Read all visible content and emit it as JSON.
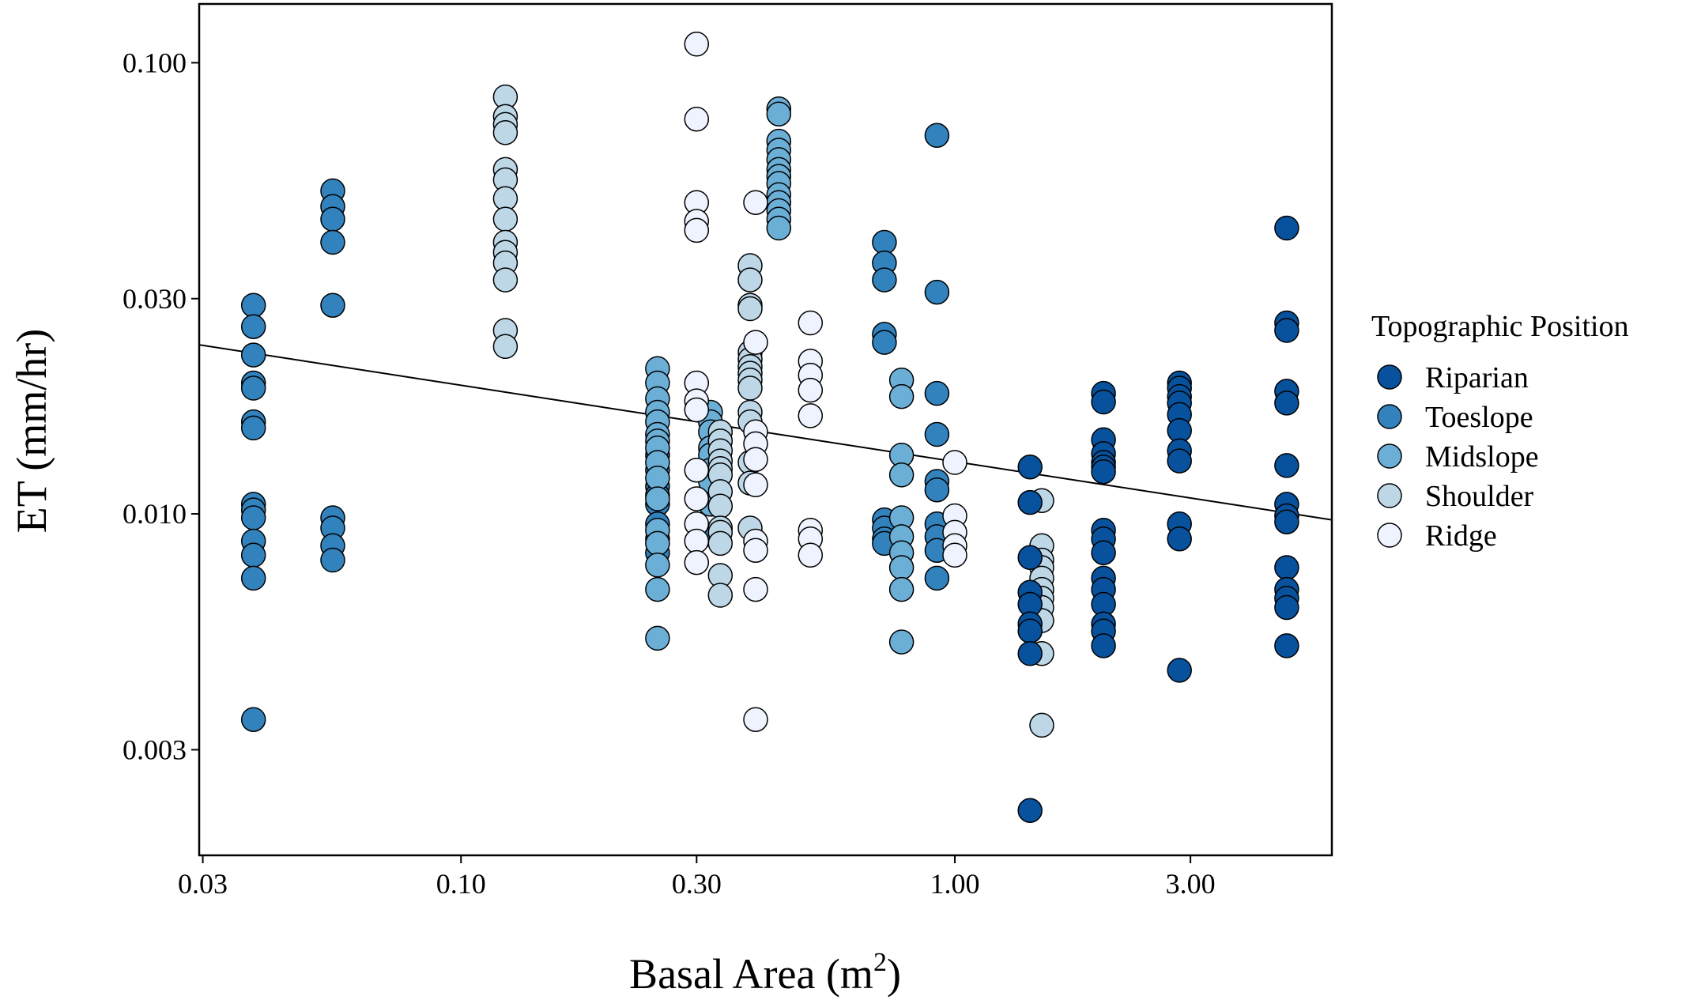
{
  "chart_data": {
    "type": "scatter",
    "title": "",
    "xlabel": "Basal Area (m",
    "xlabel_superscript": "2",
    "xlabel_close": ")",
    "ylabel": "ET (mm/hr)",
    "x_scale": "log10",
    "y_scale": "log10",
    "xlim": [
      0.0295,
      5.8
    ],
    "ylim": [
      0.00175,
      0.135
    ],
    "x_ticks": [
      {
        "value": 0.03,
        "label": "0.03"
      },
      {
        "value": 0.1,
        "label": "0.10"
      },
      {
        "value": 0.3,
        "label": "0.30"
      },
      {
        "value": 1.0,
        "label": "1.00"
      },
      {
        "value": 3.0,
        "label": "3.00"
      }
    ],
    "y_ticks": [
      {
        "value": 0.003,
        "label": "0.003"
      },
      {
        "value": 0.01,
        "label": "0.010"
      },
      {
        "value": 0.03,
        "label": "0.030"
      },
      {
        "value": 0.1,
        "label": "0.100"
      }
    ],
    "grid": false,
    "legend": {
      "title": "Topographic Position",
      "placement": "right",
      "entries": [
        "Riparian",
        "Toeslope",
        "Midslope",
        "Shoulder",
        "Ridge"
      ]
    },
    "colors": {
      "Riparian": "#08519c",
      "Toeslope": "#3182bd",
      "Midslope": "#6baed6",
      "Shoulder": "#bdd7e7",
      "Ridge": "#eff3ff"
    },
    "trend_line": {
      "x": [
        0.0295,
        5.8
      ],
      "y": [
        0.0237,
        0.0097
      ]
    },
    "series": [
      {
        "name": "Toeslope",
        "points": [
          [
            0.038,
            0.029
          ],
          [
            0.038,
            0.026
          ],
          [
            0.038,
            0.0225
          ],
          [
            0.038,
            0.0195
          ],
          [
            0.038,
            0.019
          ],
          [
            0.038,
            0.016
          ],
          [
            0.038,
            0.0155
          ],
          [
            0.038,
            0.0105
          ],
          [
            0.038,
            0.0102
          ],
          [
            0.038,
            0.0098
          ],
          [
            0.038,
            0.0087
          ],
          [
            0.038,
            0.0081
          ],
          [
            0.038,
            0.0072
          ],
          [
            0.038,
            0.0035
          ],
          [
            0.055,
            0.052
          ],
          [
            0.055,
            0.048
          ],
          [
            0.055,
            0.045
          ],
          [
            0.055,
            0.04
          ],
          [
            0.055,
            0.029
          ],
          [
            0.055,
            0.0098
          ],
          [
            0.055,
            0.0093
          ],
          [
            0.055,
            0.0085
          ],
          [
            0.055,
            0.0079
          ],
          [
            0.25,
            0.0135
          ],
          [
            0.25,
            0.0125
          ],
          [
            0.25,
            0.0115
          ],
          [
            0.25,
            0.011
          ],
          [
            0.25,
            0.0105
          ],
          [
            0.25,
            0.0095
          ],
          [
            0.25,
            0.0088
          ],
          [
            0.25,
            0.0082
          ],
          [
            0.32,
            0.009
          ],
          [
            0.72,
            0.04
          ],
          [
            0.72,
            0.036
          ],
          [
            0.72,
            0.033
          ],
          [
            0.72,
            0.025
          ],
          [
            0.72,
            0.024
          ],
          [
            0.72,
            0.0097
          ],
          [
            0.72,
            0.0093
          ],
          [
            0.72,
            0.0088
          ],
          [
            0.72,
            0.0086
          ],
          [
            0.92,
            0.069
          ],
          [
            0.92,
            0.031
          ],
          [
            0.92,
            0.0185
          ],
          [
            0.92,
            0.015
          ],
          [
            0.92,
            0.0118
          ],
          [
            0.92,
            0.0113
          ],
          [
            0.92,
            0.0095
          ],
          [
            0.92,
            0.0089
          ],
          [
            0.92,
            0.0083
          ],
          [
            0.92,
            0.0072
          ]
        ]
      },
      {
        "name": "Midslope",
        "points": [
          [
            0.25,
            0.021
          ],
          [
            0.25,
            0.0195
          ],
          [
            0.25,
            0.018
          ],
          [
            0.25,
            0.0168
          ],
          [
            0.25,
            0.016
          ],
          [
            0.25,
            0.015
          ],
          [
            0.25,
            0.0145
          ],
          [
            0.25,
            0.014
          ],
          [
            0.25,
            0.013
          ],
          [
            0.25,
            0.012
          ],
          [
            0.25,
            0.0108
          ],
          [
            0.25,
            0.0092
          ],
          [
            0.25,
            0.0086
          ],
          [
            0.25,
            0.0077
          ],
          [
            0.25,
            0.0068
          ],
          [
            0.25,
            0.0053
          ],
          [
            0.32,
            0.0168
          ],
          [
            0.32,
            0.016
          ],
          [
            0.32,
            0.0152
          ],
          [
            0.32,
            0.014
          ],
          [
            0.32,
            0.0135
          ],
          [
            0.32,
            0.0125
          ],
          [
            0.32,
            0.0118
          ],
          [
            0.32,
            0.0105
          ],
          [
            0.44,
            0.079
          ],
          [
            0.44,
            0.077
          ],
          [
            0.44,
            0.067
          ],
          [
            0.44,
            0.064
          ],
          [
            0.44,
            0.061
          ],
          [
            0.44,
            0.058
          ],
          [
            0.44,
            0.056
          ],
          [
            0.44,
            0.054
          ],
          [
            0.44,
            0.051
          ],
          [
            0.44,
            0.049
          ],
          [
            0.44,
            0.047
          ],
          [
            0.44,
            0.045
          ],
          [
            0.44,
            0.043
          ],
          [
            0.78,
            0.0198
          ],
          [
            0.78,
            0.0182
          ],
          [
            0.78,
            0.0135
          ],
          [
            0.78,
            0.0122
          ],
          [
            0.78,
            0.0098
          ],
          [
            0.78,
            0.0089
          ],
          [
            0.78,
            0.0082
          ],
          [
            0.78,
            0.0076
          ],
          [
            0.78,
            0.0068
          ],
          [
            0.78,
            0.0052
          ]
        ]
      },
      {
        "name": "Shoulder",
        "points": [
          [
            0.123,
            0.084
          ],
          [
            0.123,
            0.076
          ],
          [
            0.123,
            0.073
          ],
          [
            0.123,
            0.07
          ],
          [
            0.123,
            0.058
          ],
          [
            0.123,
            0.055
          ],
          [
            0.123,
            0.05
          ],
          [
            0.123,
            0.045
          ],
          [
            0.123,
            0.04
          ],
          [
            0.123,
            0.038
          ],
          [
            0.123,
            0.036
          ],
          [
            0.123,
            0.033
          ],
          [
            0.123,
            0.0255
          ],
          [
            0.123,
            0.0235
          ],
          [
            0.335,
            0.0152
          ],
          [
            0.335,
            0.0145
          ],
          [
            0.335,
            0.0138
          ],
          [
            0.335,
            0.0131
          ],
          [
            0.335,
            0.0126
          ],
          [
            0.335,
            0.0122
          ],
          [
            0.335,
            0.0112
          ],
          [
            0.335,
            0.0104
          ],
          [
            0.335,
            0.0093
          ],
          [
            0.335,
            0.0091
          ],
          [
            0.335,
            0.0086
          ],
          [
            0.335,
            0.0073
          ],
          [
            0.335,
            0.0066
          ],
          [
            0.385,
            0.0355
          ],
          [
            0.385,
            0.033
          ],
          [
            0.385,
            0.029
          ],
          [
            0.385,
            0.0285
          ],
          [
            0.385,
            0.0228
          ],
          [
            0.385,
            0.022
          ],
          [
            0.385,
            0.0212
          ],
          [
            0.385,
            0.0205
          ],
          [
            0.385,
            0.0198
          ],
          [
            0.385,
            0.019
          ],
          [
            0.385,
            0.0168
          ],
          [
            0.385,
            0.016
          ],
          [
            0.385,
            0.013
          ],
          [
            0.385,
            0.0117
          ],
          [
            0.385,
            0.0093
          ],
          [
            1.5,
            0.0107
          ],
          [
            1.5,
            0.0085
          ],
          [
            1.5,
            0.0079
          ],
          [
            1.5,
            0.0076
          ],
          [
            1.5,
            0.0072
          ],
          [
            1.5,
            0.0068
          ],
          [
            1.5,
            0.0065
          ],
          [
            1.5,
            0.0062
          ],
          [
            1.5,
            0.0058
          ],
          [
            1.5,
            0.0049
          ],
          [
            1.5,
            0.0034
          ]
        ]
      },
      {
        "name": "Ridge",
        "points": [
          [
            0.3,
            0.11
          ],
          [
            0.3,
            0.075
          ],
          [
            0.3,
            0.049
          ],
          [
            0.3,
            0.0445
          ],
          [
            0.3,
            0.0425
          ],
          [
            0.3,
            0.0195
          ],
          [
            0.3,
            0.0178
          ],
          [
            0.3,
            0.017
          ],
          [
            0.3,
            0.0125
          ],
          [
            0.3,
            0.0108
          ],
          [
            0.3,
            0.0095
          ],
          [
            0.3,
            0.0087
          ],
          [
            0.3,
            0.0078
          ],
          [
            0.395,
            0.049
          ],
          [
            0.395,
            0.024
          ],
          [
            0.395,
            0.0152
          ],
          [
            0.395,
            0.0143
          ],
          [
            0.395,
            0.0132
          ],
          [
            0.395,
            0.0116
          ],
          [
            0.395,
            0.0087
          ],
          [
            0.395,
            0.0083
          ],
          [
            0.395,
            0.0068
          ],
          [
            0.395,
            0.0035
          ],
          [
            0.51,
            0.0265
          ],
          [
            0.51,
            0.0218
          ],
          [
            0.51,
            0.0203
          ],
          [
            0.51,
            0.0188
          ],
          [
            0.51,
            0.0165
          ],
          [
            0.51,
            0.0092
          ],
          [
            0.51,
            0.0088
          ],
          [
            0.51,
            0.0081
          ],
          [
            1.0,
            0.013
          ],
          [
            1.0,
            0.0099
          ],
          [
            1.0,
            0.0091
          ],
          [
            1.0,
            0.0085
          ],
          [
            1.0,
            0.0081
          ]
        ]
      },
      {
        "name": "Riparian",
        "points": [
          [
            1.42,
            0.0127
          ],
          [
            1.42,
            0.0106
          ],
          [
            1.42,
            0.008
          ],
          [
            1.42,
            0.0067
          ],
          [
            1.42,
            0.0063
          ],
          [
            1.42,
            0.0057
          ],
          [
            1.42,
            0.0055
          ],
          [
            1.42,
            0.0049
          ],
          [
            1.42,
            0.0022
          ],
          [
            2.0,
            0.0185
          ],
          [
            2.0,
            0.0177
          ],
          [
            2.0,
            0.0146
          ],
          [
            2.0,
            0.0136
          ],
          [
            2.0,
            0.013
          ],
          [
            2.0,
            0.0127
          ],
          [
            2.0,
            0.0124
          ],
          [
            2.0,
            0.0092
          ],
          [
            2.0,
            0.0088
          ],
          [
            2.0,
            0.0082
          ],
          [
            2.0,
            0.0072
          ],
          [
            2.0,
            0.0068
          ],
          [
            2.0,
            0.0063
          ],
          [
            2.0,
            0.0057
          ],
          [
            2.0,
            0.0055
          ],
          [
            2.0,
            0.0051
          ],
          [
            2.85,
            0.0195
          ],
          [
            2.85,
            0.019
          ],
          [
            2.85,
            0.0182
          ],
          [
            2.85,
            0.0176
          ],
          [
            2.85,
            0.0166
          ],
          [
            2.85,
            0.0153
          ],
          [
            2.85,
            0.0138
          ],
          [
            2.85,
            0.0131
          ],
          [
            2.85,
            0.0095
          ],
          [
            2.85,
            0.0088
          ],
          [
            2.85,
            0.0045
          ],
          [
            4.7,
            0.043
          ],
          [
            4.7,
            0.0265
          ],
          [
            4.7,
            0.0255
          ],
          [
            4.7,
            0.0187
          ],
          [
            4.7,
            0.0176
          ],
          [
            4.7,
            0.0128
          ],
          [
            4.7,
            0.0105
          ],
          [
            4.7,
            0.0099
          ],
          [
            4.7,
            0.0096
          ],
          [
            4.7,
            0.0076
          ],
          [
            4.7,
            0.0068
          ],
          [
            4.7,
            0.0065
          ],
          [
            4.7,
            0.0062
          ],
          [
            4.7,
            0.0051
          ]
        ]
      }
    ]
  }
}
